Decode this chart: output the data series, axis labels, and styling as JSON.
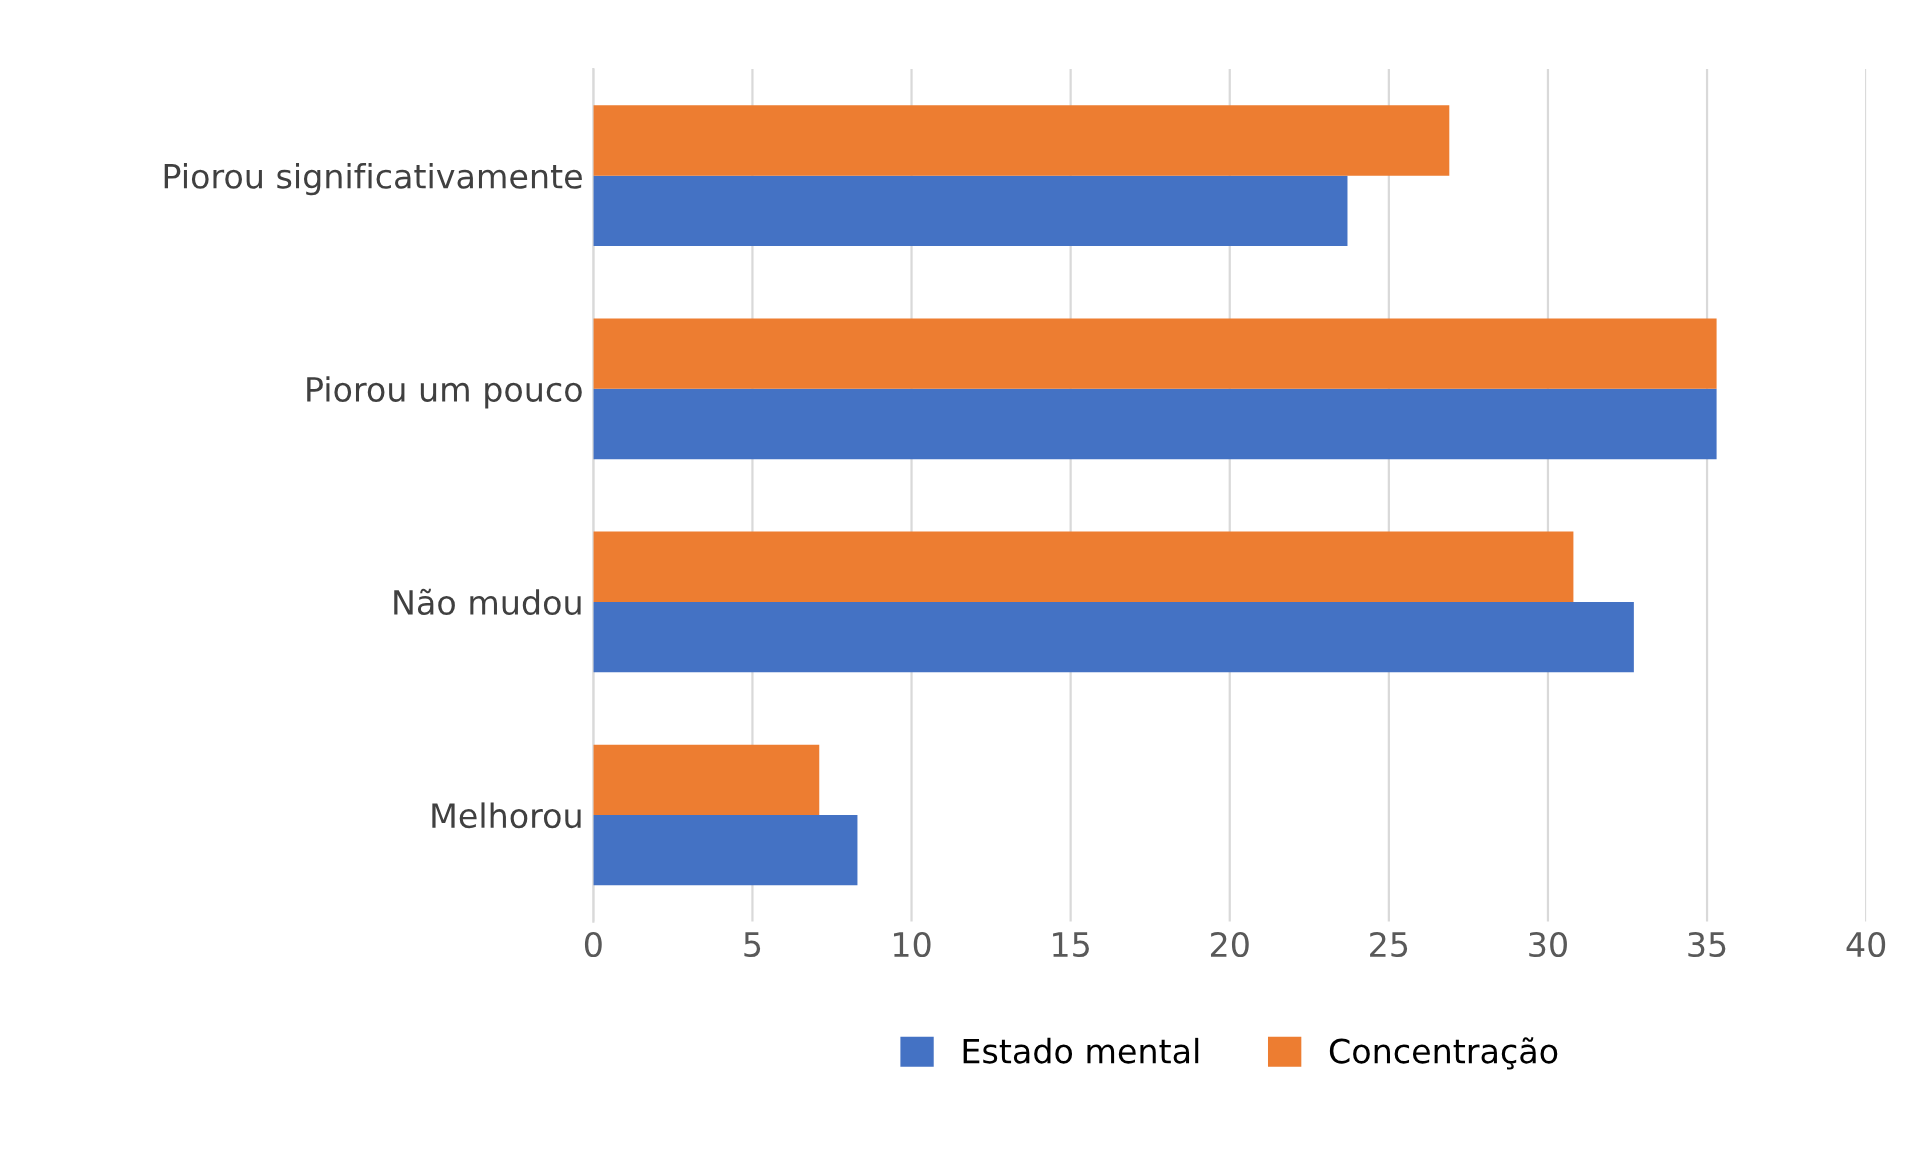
{
  "chart_data": {
    "type": "bar",
    "orientation": "horizontal",
    "categories": [
      "Piorou significativamente",
      "Piorou um pouco",
      "Não mudou",
      "Melhorou"
    ],
    "series": [
      {
        "name": "Estado mental",
        "color": "#4472c4",
        "values": [
          23.7,
          35.3,
          32.7,
          8.3
        ]
      },
      {
        "name": "Concentração",
        "color": "#ed7d31",
        "values": [
          26.9,
          35.3,
          30.8,
          7.1
        ]
      }
    ],
    "xlim": [
      0,
      40
    ],
    "xticks": [
      0,
      5,
      10,
      15,
      20,
      25,
      30,
      35,
      40
    ],
    "grid": "x",
    "legend": "bottom"
  }
}
